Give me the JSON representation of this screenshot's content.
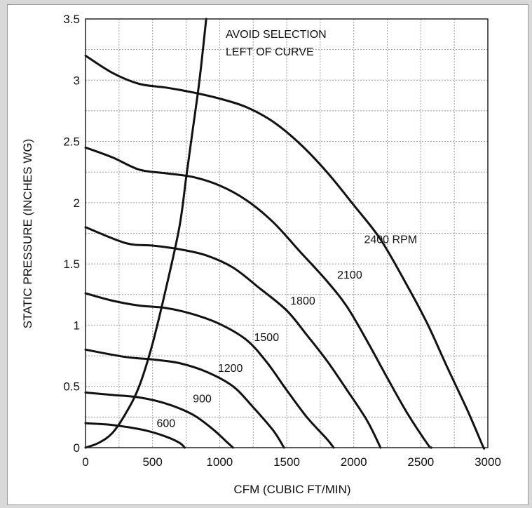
{
  "chart_data": {
    "type": "line",
    "xlabel": "CFM (CUBIC FT/MIN)",
    "ylabel": "STATIC PRESSURE (INCHES WG)",
    "xlim": [
      0,
      3000
    ],
    "ylim": [
      0,
      3.5
    ],
    "x_ticks": [
      "0",
      "500",
      "1000",
      "1500",
      "2000",
      "2500",
      "3000"
    ],
    "y_ticks": [
      "0",
      "0.5",
      "1",
      "1.5",
      "2",
      "2.5",
      "3",
      "3.5"
    ],
    "grid": true,
    "annotation": [
      "AVOID SELECTION",
      "LEFT OF CURVE"
    ],
    "series": [
      {
        "name": "600",
        "label": "600",
        "label_at": [
          600,
          0.17
        ],
        "points": [
          [
            0,
            0.2
          ],
          [
            150,
            0.19
          ],
          [
            300,
            0.17
          ],
          [
            450,
            0.14
          ],
          [
            600,
            0.09
          ],
          [
            700,
            0.04
          ],
          [
            740,
            0
          ]
        ]
      },
      {
        "name": "900",
        "label": "900",
        "label_at": [
          870,
          0.37
        ],
        "points": [
          [
            0,
            0.45
          ],
          [
            200,
            0.43
          ],
          [
            400,
            0.41
          ],
          [
            600,
            0.36
          ],
          [
            800,
            0.27
          ],
          [
            950,
            0.15
          ],
          [
            1060,
            0.04
          ],
          [
            1100,
            0
          ]
        ]
      },
      {
        "name": "1200",
        "label": "1200",
        "label_at": [
          1080,
          0.62
        ],
        "points": [
          [
            0,
            0.8
          ],
          [
            300,
            0.74
          ],
          [
            500,
            0.72
          ],
          [
            700,
            0.69
          ],
          [
            900,
            0.62
          ],
          [
            1100,
            0.5
          ],
          [
            1250,
            0.33
          ],
          [
            1400,
            0.14
          ],
          [
            1480,
            0
          ]
        ]
      },
      {
        "name": "1500",
        "label": "1500",
        "label_at": [
          1350,
          0.87
        ],
        "points": [
          [
            0,
            1.26
          ],
          [
            200,
            1.2
          ],
          [
            400,
            1.16
          ],
          [
            600,
            1.14
          ],
          [
            800,
            1.09
          ],
          [
            1000,
            1.01
          ],
          [
            1200,
            0.88
          ],
          [
            1350,
            0.7
          ],
          [
            1500,
            0.47
          ],
          [
            1650,
            0.25
          ],
          [
            1800,
            0.07
          ],
          [
            1850,
            0
          ]
        ]
      },
      {
        "name": "1800",
        "label": "1800",
        "label_at": [
          1620,
          1.17
        ],
        "points": [
          [
            0,
            1.8
          ],
          [
            300,
            1.67
          ],
          [
            500,
            1.65
          ],
          [
            700,
            1.62
          ],
          [
            900,
            1.57
          ],
          [
            1100,
            1.47
          ],
          [
            1300,
            1.3
          ],
          [
            1500,
            1.12
          ],
          [
            1650,
            0.92
          ],
          [
            1800,
            0.71
          ],
          [
            1950,
            0.47
          ],
          [
            2100,
            0.22
          ],
          [
            2200,
            0
          ]
        ]
      },
      {
        "name": "2100",
        "label": "2100",
        "label_at": [
          1970,
          1.38
        ],
        "points": [
          [
            0,
            2.45
          ],
          [
            200,
            2.37
          ],
          [
            400,
            2.27
          ],
          [
            600,
            2.24
          ],
          [
            800,
            2.21
          ],
          [
            1000,
            2.14
          ],
          [
            1200,
            2.02
          ],
          [
            1400,
            1.84
          ],
          [
            1600,
            1.6
          ],
          [
            1800,
            1.36
          ],
          [
            1950,
            1.15
          ],
          [
            2100,
            0.87
          ],
          [
            2250,
            0.57
          ],
          [
            2400,
            0.28
          ],
          [
            2550,
            0.03
          ],
          [
            2580,
            0
          ]
        ]
      },
      {
        "name": "2400 RPM",
        "label": "2400 RPM",
        "label_at": [
          2275,
          1.67
        ],
        "points": [
          [
            0,
            3.2
          ],
          [
            200,
            3.06
          ],
          [
            400,
            2.97
          ],
          [
            600,
            2.94
          ],
          [
            800,
            2.9
          ],
          [
            1000,
            2.85
          ],
          [
            1200,
            2.78
          ],
          [
            1400,
            2.66
          ],
          [
            1600,
            2.48
          ],
          [
            1800,
            2.25
          ],
          [
            2000,
            1.98
          ],
          [
            2200,
            1.7
          ],
          [
            2400,
            1.32
          ],
          [
            2550,
            1.01
          ],
          [
            2700,
            0.65
          ],
          [
            2850,
            0.3
          ],
          [
            2960,
            0.02
          ],
          [
            2970,
            0
          ]
        ]
      }
    ],
    "limit_curve": {
      "name": "avoid selection boundary",
      "points": [
        [
          0,
          0
        ],
        [
          100,
          0.04
        ],
        [
          200,
          0.12
        ],
        [
          300,
          0.28
        ],
        [
          400,
          0.5
        ],
        [
          500,
          0.85
        ],
        [
          600,
          1.3
        ],
        [
          700,
          1.8
        ],
        [
          750,
          2.2
        ],
        [
          800,
          2.6
        ],
        [
          850,
          3.0
        ],
        [
          900,
          3.5
        ]
      ]
    }
  }
}
